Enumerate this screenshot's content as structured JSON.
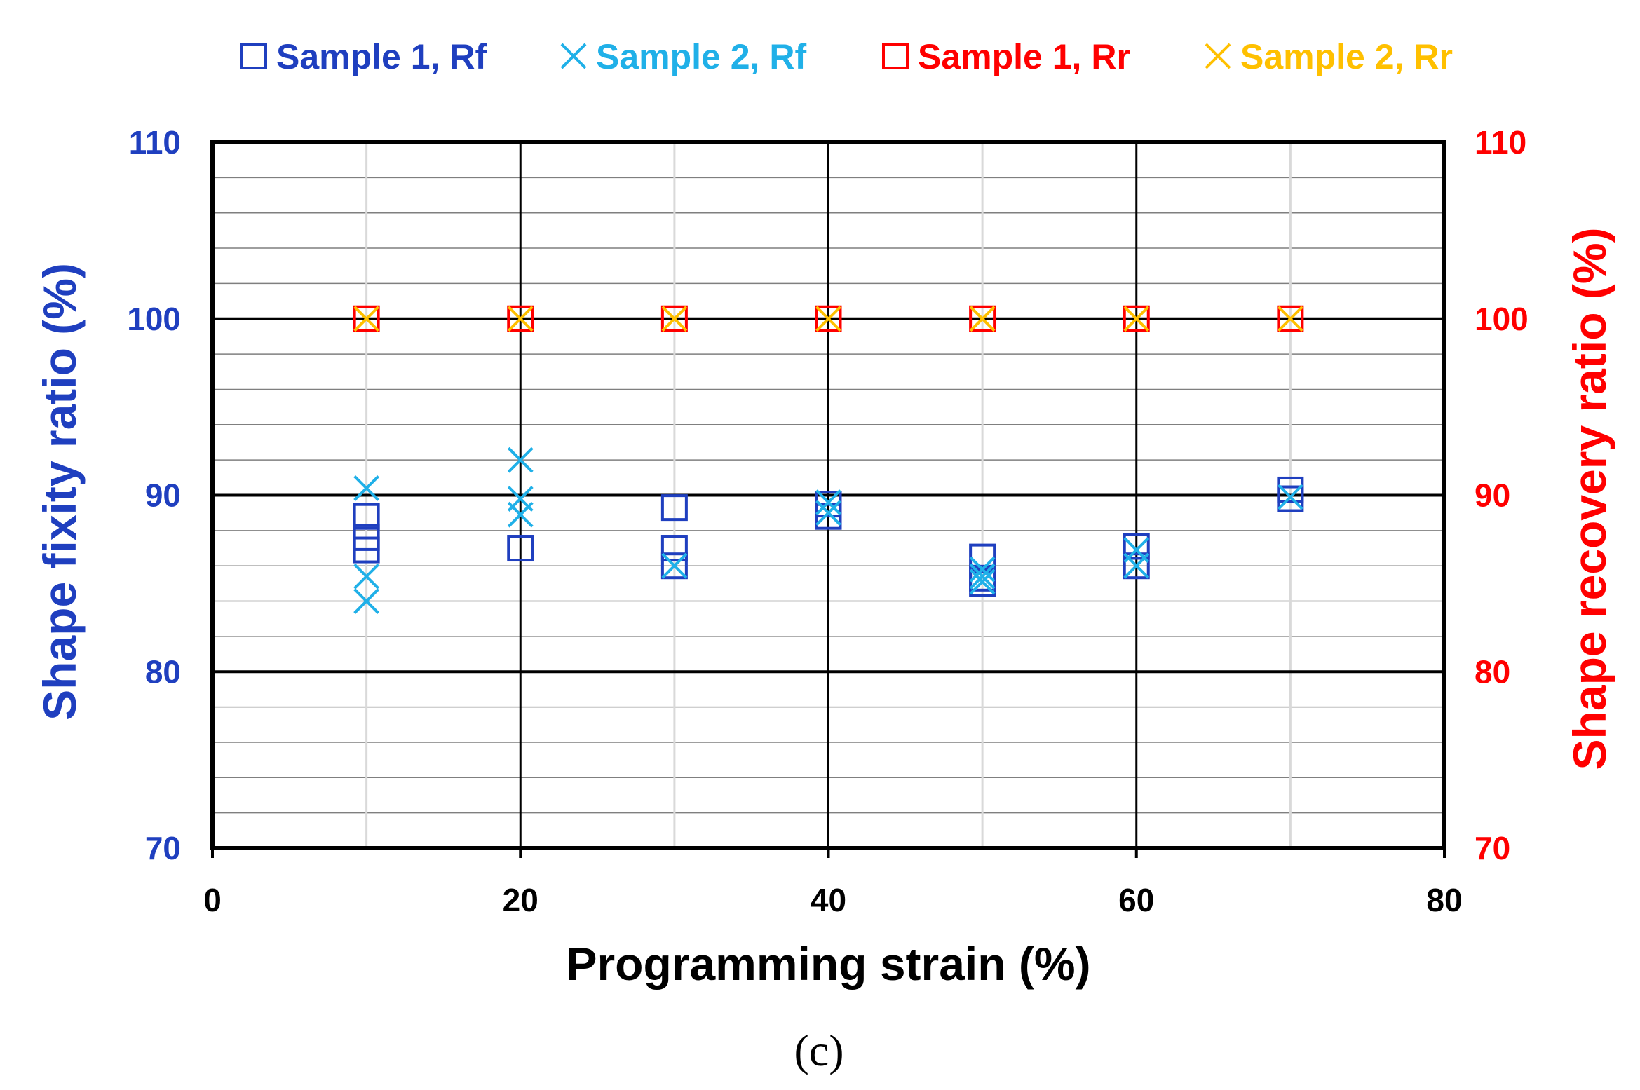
{
  "caption": "(c)",
  "chart_data": {
    "type": "scatter",
    "x_axis": {
      "label": "Programming strain (%)",
      "range": [
        0,
        80
      ],
      "ticks": [
        0,
        20,
        40,
        60,
        80
      ],
      "minor_grid": 10,
      "label_color": "#000000"
    },
    "y_axis_left": {
      "label": "Shape fixity ratio (%)",
      "range": [
        70,
        110
      ],
      "ticks": [
        70,
        80,
        90,
        100,
        110
      ],
      "color": "#1F3FBF"
    },
    "y_axis_right": {
      "label": "Shape recovery ratio (%)",
      "range": [
        70,
        110
      ],
      "ticks": [
        70,
        80,
        90,
        100,
        110
      ],
      "color": "#FF0000"
    },
    "grid": {
      "major": true,
      "minor": true
    },
    "legend": {
      "position": "top"
    },
    "series": [
      {
        "name": "Sample 1, Rf",
        "marker": "square",
        "color": "#1F3FBF",
        "axis": "left",
        "points": [
          [
            10,
            88.8
          ],
          [
            10,
            87.6
          ],
          [
            10,
            86.9
          ],
          [
            20,
            87.0
          ],
          [
            30,
            89.3
          ],
          [
            30,
            87.0
          ],
          [
            30,
            86.0
          ],
          [
            40,
            89.5
          ],
          [
            40,
            88.8
          ],
          [
            50,
            86.5
          ],
          [
            50,
            85.3
          ],
          [
            50,
            85.0
          ],
          [
            60,
            87.1
          ],
          [
            60,
            86.0
          ],
          [
            70,
            90.3
          ],
          [
            70,
            89.8
          ]
        ]
      },
      {
        "name": "Sample 2, Rf",
        "marker": "x",
        "color": "#20B0E8",
        "axis": "left",
        "points": [
          [
            10,
            90.4
          ],
          [
            10,
            85.4
          ],
          [
            10,
            84.0
          ],
          [
            20,
            92.0
          ],
          [
            20,
            89.8
          ],
          [
            20,
            88.9
          ],
          [
            30,
            86.0
          ],
          [
            40,
            89.6
          ],
          [
            40,
            89.0
          ],
          [
            50,
            85.8
          ],
          [
            50,
            85.4
          ],
          [
            50,
            85.1
          ],
          [
            60,
            86.9
          ],
          [
            60,
            86.0
          ],
          [
            70,
            89.9
          ]
        ]
      },
      {
        "name": "Sample 1, Rr",
        "marker": "square",
        "color": "#FF0000",
        "axis": "right",
        "points": [
          [
            10,
            100
          ],
          [
            20,
            100
          ],
          [
            30,
            100
          ],
          [
            40,
            100
          ],
          [
            50,
            100
          ],
          [
            60,
            100
          ],
          [
            70,
            100
          ]
        ]
      },
      {
        "name": "Sample 2, Rr",
        "marker": "x",
        "color": "#FFC000",
        "axis": "right",
        "points": [
          [
            10,
            100
          ],
          [
            20,
            100
          ],
          [
            30,
            100
          ],
          [
            40,
            100
          ],
          [
            50,
            100
          ],
          [
            60,
            100
          ],
          [
            70,
            100
          ]
        ]
      }
    ]
  }
}
